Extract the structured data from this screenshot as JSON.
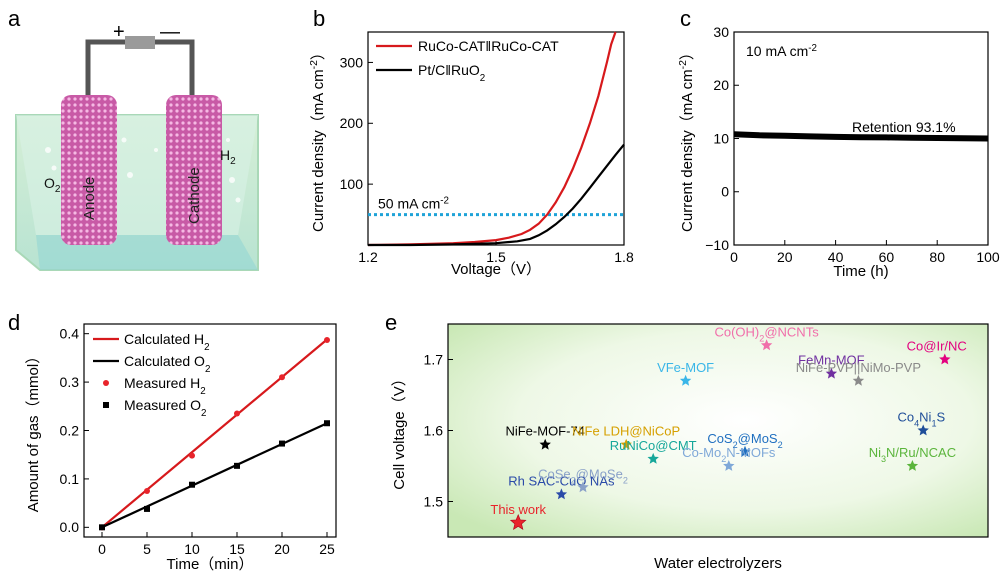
{
  "panels": {
    "a": {
      "letter": "a",
      "plus": "+",
      "minus": "—",
      "anode": "Anode",
      "cathode": "Cathode",
      "o2": [
        "O",
        "2"
      ],
      "h2": [
        "H",
        "2"
      ]
    }
  },
  "chart_data": [
    {
      "panel": "b",
      "letter": "b",
      "type": "line",
      "xlabel": "Voltage（V）",
      "ylabel": "Current density（mA cm⁻²）",
      "xlim": [
        1.2,
        1.8
      ],
      "ylim": [
        0,
        350
      ],
      "xticks": [
        "1.2",
        "1.5",
        "1.8"
      ],
      "xtick_values": [
        1.2,
        1.5,
        1.8
      ],
      "yticks": [
        "100",
        "200",
        "300"
      ],
      "ytick_values": [
        100,
        200,
        300
      ],
      "series": [
        {
          "name": "RuCo-CAT‖RuCo-CAT",
          "color": "#d7191c",
          "x": [
            1.2,
            1.3,
            1.4,
            1.45,
            1.5,
            1.53,
            1.56,
            1.58,
            1.6,
            1.62,
            1.64,
            1.66,
            1.68,
            1.7,
            1.72,
            1.74,
            1.76,
            1.77,
            1.78
          ],
          "y": [
            0,
            1,
            3,
            5,
            8,
            12,
            18,
            25,
            35,
            50,
            70,
            95,
            125,
            160,
            200,
            245,
            300,
            330,
            350
          ]
        },
        {
          "name": "Pt/C‖RuO₂",
          "color": "#000000",
          "x": [
            1.2,
            1.3,
            1.4,
            1.5,
            1.55,
            1.58,
            1.6,
            1.62,
            1.64,
            1.66,
            1.68,
            1.7,
            1.72,
            1.74,
            1.76,
            1.78,
            1.8
          ],
          "y": [
            0,
            0,
            1,
            3,
            6,
            10,
            16,
            24,
            34,
            46,
            60,
            76,
            94,
            112,
            130,
            148,
            165
          ]
        }
      ],
      "reference_line": {
        "y": 50,
        "label": "50 mA cm⁻²",
        "color": "#1fa3d8"
      }
    },
    {
      "panel": "c",
      "letter": "c",
      "type": "line",
      "xlabel": "Time (h)",
      "ylabel": "Current density（mA cm⁻²）",
      "xlim": [
        0,
        100
      ],
      "ylim": [
        -10,
        30
      ],
      "xticks": [
        "0",
        "20",
        "40",
        "60",
        "80",
        "100"
      ],
      "xtick_values": [
        0,
        20,
        40,
        60,
        80,
        100
      ],
      "yticks": [
        "−10",
        "0",
        "10",
        "20",
        "30"
      ],
      "ytick_values": [
        -10,
        0,
        10,
        20,
        30
      ],
      "series": [
        {
          "color": "#000000",
          "x": [
            0,
            10,
            20,
            30,
            40,
            50,
            60,
            70,
            80,
            90,
            100
          ],
          "y": [
            10.8,
            10.6,
            10.5,
            10.4,
            10.3,
            10.25,
            10.2,
            10.15,
            10.1,
            10.05,
            10.0
          ]
        }
      ],
      "annotations": [
        "10 mA cm⁻²",
        "Retention 93.1%"
      ]
    },
    {
      "panel": "d",
      "letter": "d",
      "type": "line",
      "xlabel": "Time（min）",
      "ylabel": "Amount of gas（mmol）",
      "xlim": [
        -2,
        26
      ],
      "ylim": [
        -0.02,
        0.42
      ],
      "xticks": [
        "0",
        "5",
        "10",
        "15",
        "20",
        "25"
      ],
      "xtick_values": [
        0,
        5,
        10,
        15,
        20,
        25
      ],
      "yticks": [
        "0.0",
        "0.1",
        "0.2",
        "0.3",
        "0.4"
      ],
      "ytick_values": [
        0,
        0.1,
        0.2,
        0.3,
        0.4
      ],
      "series": [
        {
          "name": "Calculated H₂",
          "kind": "line",
          "color": "#d7191c",
          "x": [
            0,
            25
          ],
          "y": [
            0,
            0.388
          ]
        },
        {
          "name": "Calculated O₂",
          "kind": "line",
          "color": "#000000",
          "x": [
            0,
            25
          ],
          "y": [
            0,
            0.215
          ]
        },
        {
          "name": "Measured H₂",
          "kind": "circle",
          "color": "#e8242b",
          "x": [
            0,
            5,
            10,
            15,
            20,
            25
          ],
          "y": [
            0.0,
            0.075,
            0.148,
            0.235,
            0.31,
            0.387
          ]
        },
        {
          "name": "Measured O₂",
          "kind": "square",
          "color": "#000000",
          "x": [
            0,
            5,
            10,
            15,
            20,
            25
          ],
          "y": [
            0.0,
            0.038,
            0.088,
            0.127,
            0.173,
            0.215
          ]
        }
      ]
    },
    {
      "panel": "e",
      "letter": "e",
      "type": "scatter",
      "xlabel": "Water electrolyzers",
      "ylabel": "Cell voltage（V）",
      "xlim": [
        0,
        10
      ],
      "ylim": [
        1.45,
        1.75
      ],
      "yticks": [
        "1.5",
        "1.6",
        "1.7"
      ],
      "ytick_values": [
        1.5,
        1.6,
        1.7
      ],
      "points": [
        {
          "label": "Co(OH)₂@NCNTs",
          "x": 5.9,
          "y": 1.72,
          "color": "#f06eaa"
        },
        {
          "label": "Co@Ir/NC",
          "x": 9.2,
          "y": 1.7,
          "color": "#e3007f"
        },
        {
          "label": "FeMn-MOF",
          "x": 7.1,
          "y": 1.68,
          "color": "#7030a0"
        },
        {
          "label": "VFe-MOF",
          "x": 4.4,
          "y": 1.67,
          "color": "#39b6e8"
        },
        {
          "label": "NiFe-PVP||NiMo-PVP",
          "x": 7.6,
          "y": 1.67,
          "color": "#8a8a8a"
        },
        {
          "label": "Co₄Ni₁S",
          "x": 8.8,
          "y": 1.6,
          "color": "#1f4e99"
        },
        {
          "label": "NiFe-MOF-74",
          "x": 1.8,
          "y": 1.58,
          "color": "#000000"
        },
        {
          "label": "NiFe LDH@NiCoP",
          "x": 3.3,
          "y": 1.58,
          "color": "#d6a000"
        },
        {
          "label": "CoS₂@MoS₂",
          "x": 5.5,
          "y": 1.57,
          "color": "#1f6fc0"
        },
        {
          "label": "RuNiCo@CMT",
          "x": 3.8,
          "y": 1.56,
          "color": "#16a79a"
        },
        {
          "label": "Ni₃N/Ru/NCAC",
          "x": 8.6,
          "y": 1.55,
          "color": "#5bb53c"
        },
        {
          "label": "Co-Mo₂N-MOFs",
          "x": 5.2,
          "y": 1.55,
          "color": "#7fa8d8"
        },
        {
          "label": "Rh SAC-CuO NAs",
          "x": 2.1,
          "y": 1.51,
          "color": "#2a4aa8"
        },
        {
          "label": "CoSe₂@MoSe₂",
          "x": 2.5,
          "y": 1.52,
          "color": "#8aa1c8"
        },
        {
          "label": "This work",
          "x": 1.3,
          "y": 1.47,
          "color": "#e8242b"
        }
      ]
    }
  ]
}
